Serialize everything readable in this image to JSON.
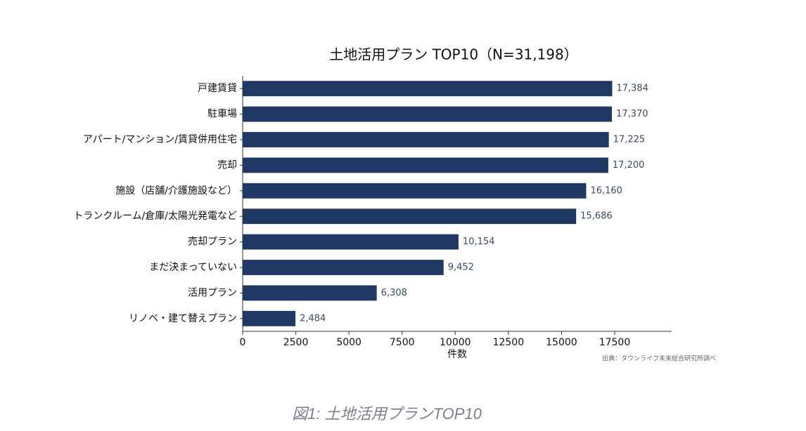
{
  "chart_data": {
    "type": "bar",
    "orientation": "horizontal",
    "title": "土地活用プラン TOP10（N=31,198）",
    "categories": [
      "戸建賃貸",
      "駐車場",
      "アパート/マンション/賃貸併用住宅",
      "売却",
      "施設（店舗/介護施設など）",
      "トランクルーム/倉庫/太陽光発電など",
      "売却プラン",
      "まだ決まっていない",
      "活用プラン",
      "リノベ・建て替えプラン"
    ],
    "values": [
      17384,
      17370,
      17225,
      17200,
      16160,
      15686,
      10154,
      9452,
      6308,
      2484
    ],
    "value_labels": [
      "17,384",
      "17,370",
      "17,225",
      "17,200",
      "16,160",
      "15,686",
      "10,154",
      "9,452",
      "6,308",
      "2,484"
    ],
    "color": "#1f3864",
    "xlim": [
      0,
      20180
    ],
    "xticks": [
      0,
      2500,
      5000,
      7500,
      10000,
      12500,
      15000,
      17500
    ],
    "xlabel": "件数",
    "grid": false,
    "source": "出典：タウンライフ未来総合研究所調べ"
  },
  "caption": "図1: 土地活用プランTOP10"
}
